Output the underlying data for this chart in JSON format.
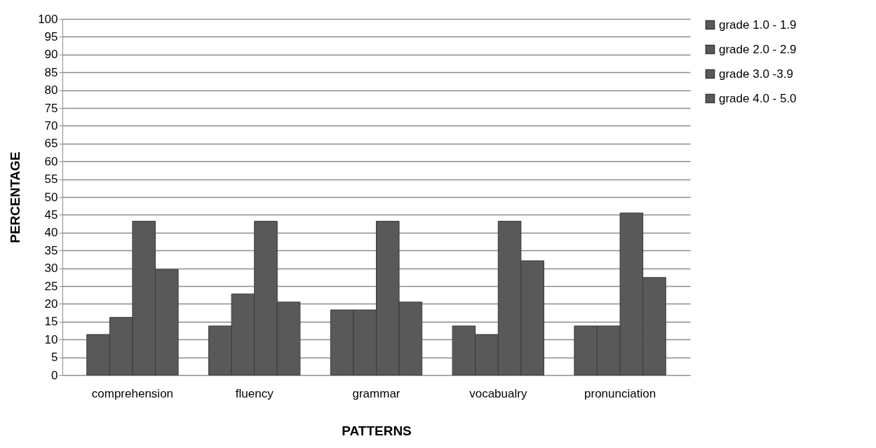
{
  "chart_data": {
    "type": "bar",
    "xlabel": "PATTERNS",
    "ylabel": "PERCENTAGE",
    "categories": [
      "comprehension",
      "fluency",
      "grammar",
      "vocabualry",
      "pronunciation"
    ],
    "series": [
      {
        "name": "grade 1.0 - 1.9",
        "color": "#595959",
        "values": [
          11.4,
          13.8,
          18.3,
          13.8,
          13.8
        ]
      },
      {
        "name": "grade 2.0 - 2.9",
        "color": "#595959",
        "values": [
          16.2,
          22.8,
          18.3,
          11.4,
          13.8
        ]
      },
      {
        "name": "grade 3.0 -3.9",
        "color": "#595959",
        "values": [
          43.2,
          43.2,
          43.2,
          43.2,
          45.5
        ]
      },
      {
        "name": "grade 4.0 - 5.0",
        "color": "#595959",
        "values": [
          29.6,
          20.5,
          20.5,
          32.1,
          27.4
        ]
      }
    ],
    "ylim": [
      0,
      100
    ],
    "yticks": [
      0,
      5,
      10,
      15,
      20,
      25,
      30,
      35,
      40,
      45,
      50,
      55,
      60,
      65,
      70,
      75,
      80,
      85,
      90,
      95,
      100
    ],
    "grid": "y",
    "legend": "right"
  }
}
